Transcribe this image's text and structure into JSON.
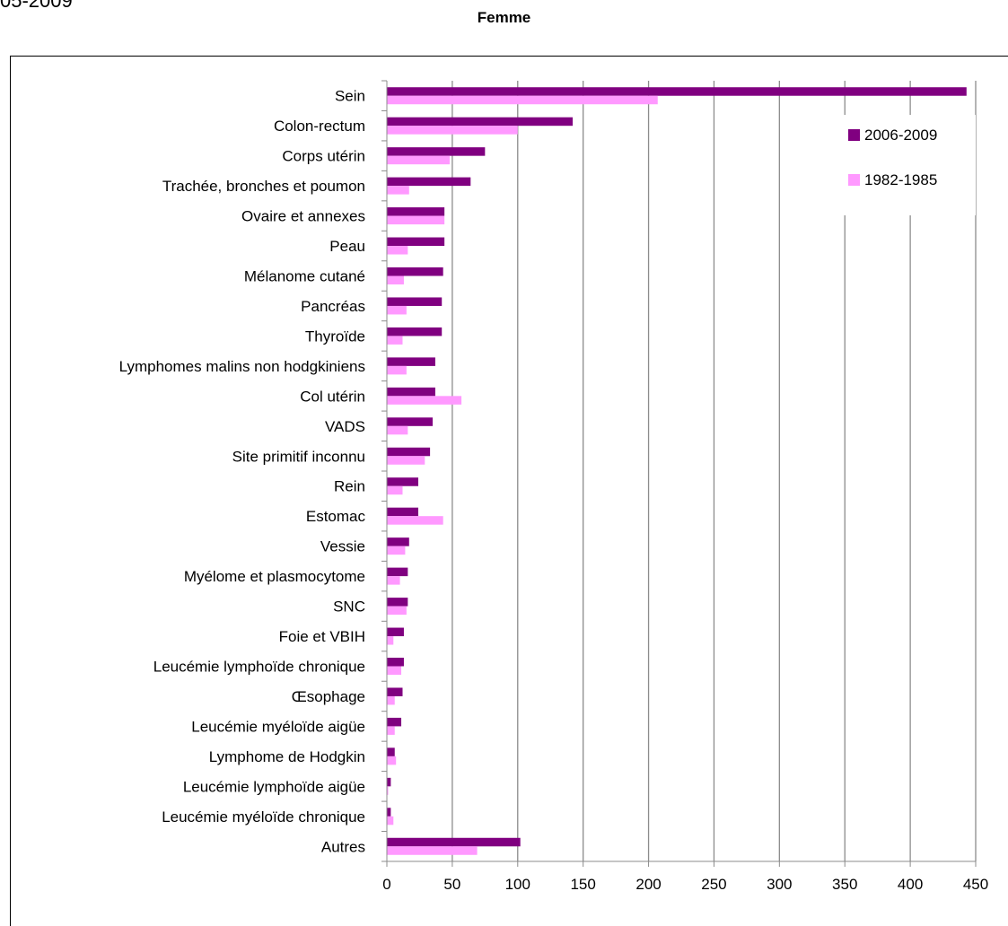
{
  "header": {
    "cut_text": "05-2009",
    "title": "Femme"
  },
  "colors": {
    "series_2006": "#800080",
    "series_1982": "#ff99ff",
    "grid": "#8c8c8c",
    "axis": "#8c8c8c"
  },
  "chart_data": {
    "type": "bar",
    "orientation": "horizontal",
    "title": "Femme",
    "xlabel": "",
    "ylabel": "",
    "xlim": [
      0,
      450
    ],
    "x_ticks": [
      "0",
      "50",
      "100",
      "150",
      "200",
      "250",
      "300",
      "350",
      "400",
      "450"
    ],
    "grid": "vertical",
    "legend_position": "top-right",
    "categories": [
      "Sein",
      "Colon-rectum",
      "Corps utérin",
      "Trachée, bronches et poumon",
      "Ovaire et annexes",
      "Peau",
      "Mélanome cutané",
      "Pancréas",
      "Thyroïde",
      "Lymphomes malins non hodgkiniens",
      "Col utérin",
      "VADS",
      "Site primitif inconnu",
      "Rein",
      "Estomac",
      "Vessie",
      "Myélome et plasmocytome",
      "SNC",
      "Foie et VBIH",
      "Leucémie lymphoïde chronique",
      "Œsophage",
      "Leucémie myéloïde aigüe",
      "Lymphome de Hodgkin",
      "Leucémie lymphoïde aigüe",
      "Leucémie myéloïde chronique",
      "Autres"
    ],
    "series": [
      {
        "name": "2006-2009",
        "color": "#800080",
        "values": [
          443,
          142,
          75,
          64,
          44,
          44,
          43,
          42,
          42,
          37,
          37,
          35,
          33,
          24,
          24,
          17,
          16,
          16,
          13,
          13,
          12,
          11,
          6,
          3,
          3,
          102
        ]
      },
      {
        "name": "1982-1985",
        "color": "#ff99ff",
        "values": [
          207,
          100,
          48,
          17,
          44,
          16,
          13,
          15,
          12,
          15,
          57,
          16,
          29,
          12,
          43,
          14,
          10,
          15,
          5,
          11,
          6,
          6,
          7,
          1,
          5,
          69
        ]
      }
    ]
  }
}
